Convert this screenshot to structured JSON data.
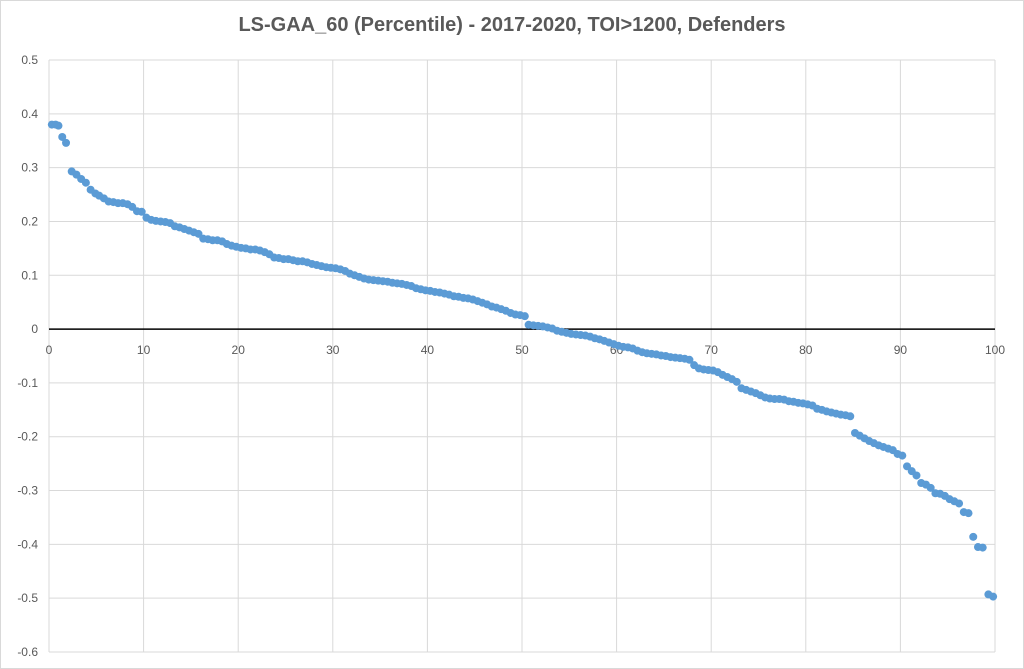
{
  "chart_data": {
    "type": "scatter",
    "title": "LS-GAA_60 (Percentile) - 2017-2020, TOI>1200, Defenders",
    "xlabel": "",
    "ylabel": "",
    "xlim": [
      0,
      100
    ],
    "ylim": [
      -0.6,
      0.5
    ],
    "x_ticks": [
      "0",
      "10",
      "20",
      "30",
      "40",
      "50",
      "60",
      "70",
      "80",
      "90",
      "100"
    ],
    "y_ticks": [
      "0.5",
      "0.4",
      "0.3",
      "0.2",
      "0.1",
      "0",
      "-0.1",
      "-0.2",
      "-0.3",
      "-0.4",
      "-0.5",
      "-0.6"
    ],
    "grid": true,
    "legend": "none",
    "colors": {
      "points": "#5b9bd5",
      "grid": "#d9d9d9",
      "zero_line": "#000000",
      "text": "#595959"
    },
    "series": [
      {
        "points": [
          [
            0.3,
            0.38
          ],
          [
            0.7,
            0.38
          ],
          [
            1.0,
            0.378
          ],
          [
            1.4,
            0.357
          ],
          [
            1.8,
            0.346
          ],
          [
            2.4,
            0.293
          ],
          [
            2.9,
            0.287
          ],
          [
            3.4,
            0.279
          ],
          [
            3.9,
            0.272
          ],
          [
            4.4,
            0.259
          ],
          [
            4.9,
            0.252
          ],
          [
            5.3,
            0.248
          ],
          [
            5.8,
            0.243
          ],
          [
            6.3,
            0.237
          ],
          [
            6.8,
            0.236
          ],
          [
            7.3,
            0.234
          ],
          [
            7.8,
            0.234
          ],
          [
            8.3,
            0.232
          ],
          [
            8.8,
            0.227
          ],
          [
            9.3,
            0.219
          ],
          [
            9.8,
            0.218
          ],
          [
            10.3,
            0.207
          ],
          [
            10.8,
            0.203
          ],
          [
            11.3,
            0.201
          ],
          [
            11.8,
            0.2
          ],
          [
            12.3,
            0.199
          ],
          [
            12.8,
            0.197
          ],
          [
            13.3,
            0.191
          ],
          [
            13.8,
            0.189
          ],
          [
            14.3,
            0.186
          ],
          [
            14.8,
            0.183
          ],
          [
            15.3,
            0.18
          ],
          [
            15.8,
            0.177
          ],
          [
            16.3,
            0.168
          ],
          [
            16.8,
            0.167
          ],
          [
            17.3,
            0.165
          ],
          [
            17.8,
            0.165
          ],
          [
            18.3,
            0.163
          ],
          [
            18.8,
            0.158
          ],
          [
            19.3,
            0.155
          ],
          [
            19.8,
            0.153
          ],
          [
            20.3,
            0.151
          ],
          [
            20.8,
            0.15
          ],
          [
            21.3,
            0.148
          ],
          [
            21.8,
            0.148
          ],
          [
            22.3,
            0.146
          ],
          [
            22.8,
            0.143
          ],
          [
            23.3,
            0.139
          ],
          [
            23.8,
            0.133
          ],
          [
            24.3,
            0.132
          ],
          [
            24.8,
            0.13
          ],
          [
            25.3,
            0.13
          ],
          [
            25.8,
            0.128
          ],
          [
            26.3,
            0.126
          ],
          [
            26.8,
            0.126
          ],
          [
            27.3,
            0.124
          ],
          [
            27.8,
            0.121
          ],
          [
            28.3,
            0.119
          ],
          [
            28.8,
            0.117
          ],
          [
            29.3,
            0.115
          ],
          [
            29.8,
            0.114
          ],
          [
            30.3,
            0.113
          ],
          [
            30.8,
            0.111
          ],
          [
            31.3,
            0.108
          ],
          [
            31.8,
            0.103
          ],
          [
            32.3,
            0.1
          ],
          [
            32.8,
            0.097
          ],
          [
            33.3,
            0.094
          ],
          [
            33.8,
            0.092
          ],
          [
            34.3,
            0.091
          ],
          [
            34.8,
            0.09
          ],
          [
            35.3,
            0.089
          ],
          [
            35.8,
            0.088
          ],
          [
            36.3,
            0.086
          ],
          [
            36.8,
            0.085
          ],
          [
            37.3,
            0.084
          ],
          [
            37.8,
            0.082
          ],
          [
            38.3,
            0.08
          ],
          [
            38.8,
            0.076
          ],
          [
            39.3,
            0.074
          ],
          [
            39.8,
            0.072
          ],
          [
            40.3,
            0.071
          ],
          [
            40.8,
            0.069
          ],
          [
            41.3,
            0.068
          ],
          [
            41.8,
            0.066
          ],
          [
            42.3,
            0.064
          ],
          [
            42.8,
            0.061
          ],
          [
            43.3,
            0.06
          ],
          [
            43.8,
            0.058
          ],
          [
            44.3,
            0.057
          ],
          [
            44.8,
            0.055
          ],
          [
            45.3,
            0.052
          ],
          [
            45.8,
            0.049
          ],
          [
            46.3,
            0.046
          ],
          [
            46.8,
            0.042
          ],
          [
            47.3,
            0.04
          ],
          [
            47.8,
            0.037
          ],
          [
            48.3,
            0.034
          ],
          [
            48.8,
            0.03
          ],
          [
            49.3,
            0.027
          ],
          [
            49.8,
            0.026
          ],
          [
            50.3,
            0.024
          ],
          [
            50.7,
            0.008
          ],
          [
            51.2,
            0.007
          ],
          [
            51.7,
            0.006
          ],
          [
            52.2,
            0.005
          ],
          [
            52.7,
            0.003
          ],
          [
            53.2,
            0.001
          ],
          [
            53.7,
            -0.003
          ],
          [
            54.2,
            -0.005
          ],
          [
            54.7,
            -0.007
          ],
          [
            55.2,
            -0.009
          ],
          [
            55.7,
            -0.01
          ],
          [
            56.2,
            -0.011
          ],
          [
            56.7,
            -0.012
          ],
          [
            57.2,
            -0.014
          ],
          [
            57.7,
            -0.017
          ],
          [
            58.2,
            -0.019
          ],
          [
            58.7,
            -0.022
          ],
          [
            59.2,
            -0.025
          ],
          [
            59.7,
            -0.028
          ],
          [
            60.2,
            -0.031
          ],
          [
            60.7,
            -0.033
          ],
          [
            61.2,
            -0.034
          ],
          [
            61.7,
            -0.036
          ],
          [
            62.2,
            -0.04
          ],
          [
            62.7,
            -0.043
          ],
          [
            63.2,
            -0.045
          ],
          [
            63.7,
            -0.046
          ],
          [
            64.2,
            -0.047
          ],
          [
            64.7,
            -0.049
          ],
          [
            65.2,
            -0.05
          ],
          [
            65.7,
            -0.052
          ],
          [
            66.2,
            -0.053
          ],
          [
            66.7,
            -0.054
          ],
          [
            67.2,
            -0.055
          ],
          [
            67.7,
            -0.057
          ],
          [
            68.2,
            -0.067
          ],
          [
            68.7,
            -0.073
          ],
          [
            69.2,
            -0.075
          ],
          [
            69.7,
            -0.076
          ],
          [
            70.2,
            -0.077
          ],
          [
            70.7,
            -0.08
          ],
          [
            71.2,
            -0.085
          ],
          [
            71.7,
            -0.089
          ],
          [
            72.2,
            -0.093
          ],
          [
            72.7,
            -0.098
          ],
          [
            73.2,
            -0.11
          ],
          [
            73.7,
            -0.113
          ],
          [
            74.2,
            -0.116
          ],
          [
            74.7,
            -0.119
          ],
          [
            75.2,
            -0.123
          ],
          [
            75.7,
            -0.127
          ],
          [
            76.2,
            -0.129
          ],
          [
            76.7,
            -0.13
          ],
          [
            77.2,
            -0.13
          ],
          [
            77.7,
            -0.131
          ],
          [
            78.2,
            -0.134
          ],
          [
            78.7,
            -0.135
          ],
          [
            79.2,
            -0.137
          ],
          [
            79.7,
            -0.138
          ],
          [
            80.2,
            -0.14
          ],
          [
            80.7,
            -0.142
          ],
          [
            81.2,
            -0.148
          ],
          [
            81.7,
            -0.15
          ],
          [
            82.2,
            -0.153
          ],
          [
            82.7,
            -0.155
          ],
          [
            83.2,
            -0.157
          ],
          [
            83.7,
            -0.159
          ],
          [
            84.2,
            -0.16
          ],
          [
            84.7,
            -0.162
          ],
          [
            85.2,
            -0.193
          ],
          [
            85.7,
            -0.198
          ],
          [
            86.2,
            -0.203
          ],
          [
            86.7,
            -0.208
          ],
          [
            87.2,
            -0.212
          ],
          [
            87.7,
            -0.216
          ],
          [
            88.2,
            -0.219
          ],
          [
            88.7,
            -0.222
          ],
          [
            89.2,
            -0.225
          ],
          [
            89.7,
            -0.232
          ],
          [
            90.2,
            -0.235
          ],
          [
            90.7,
            -0.255
          ],
          [
            91.2,
            -0.264
          ],
          [
            91.7,
            -0.272
          ],
          [
            92.2,
            -0.286
          ],
          [
            92.7,
            -0.289
          ],
          [
            93.2,
            -0.295
          ],
          [
            93.7,
            -0.305
          ],
          [
            94.2,
            -0.306
          ],
          [
            94.7,
            -0.31
          ],
          [
            95.2,
            -0.316
          ],
          [
            95.7,
            -0.32
          ],
          [
            96.2,
            -0.324
          ],
          [
            96.7,
            -0.34
          ],
          [
            97.2,
            -0.342
          ],
          [
            97.7,
            -0.386
          ],
          [
            98.2,
            -0.405
          ],
          [
            98.7,
            -0.406
          ],
          [
            99.3,
            -0.493
          ],
          [
            99.8,
            -0.497
          ]
        ]
      }
    ]
  }
}
